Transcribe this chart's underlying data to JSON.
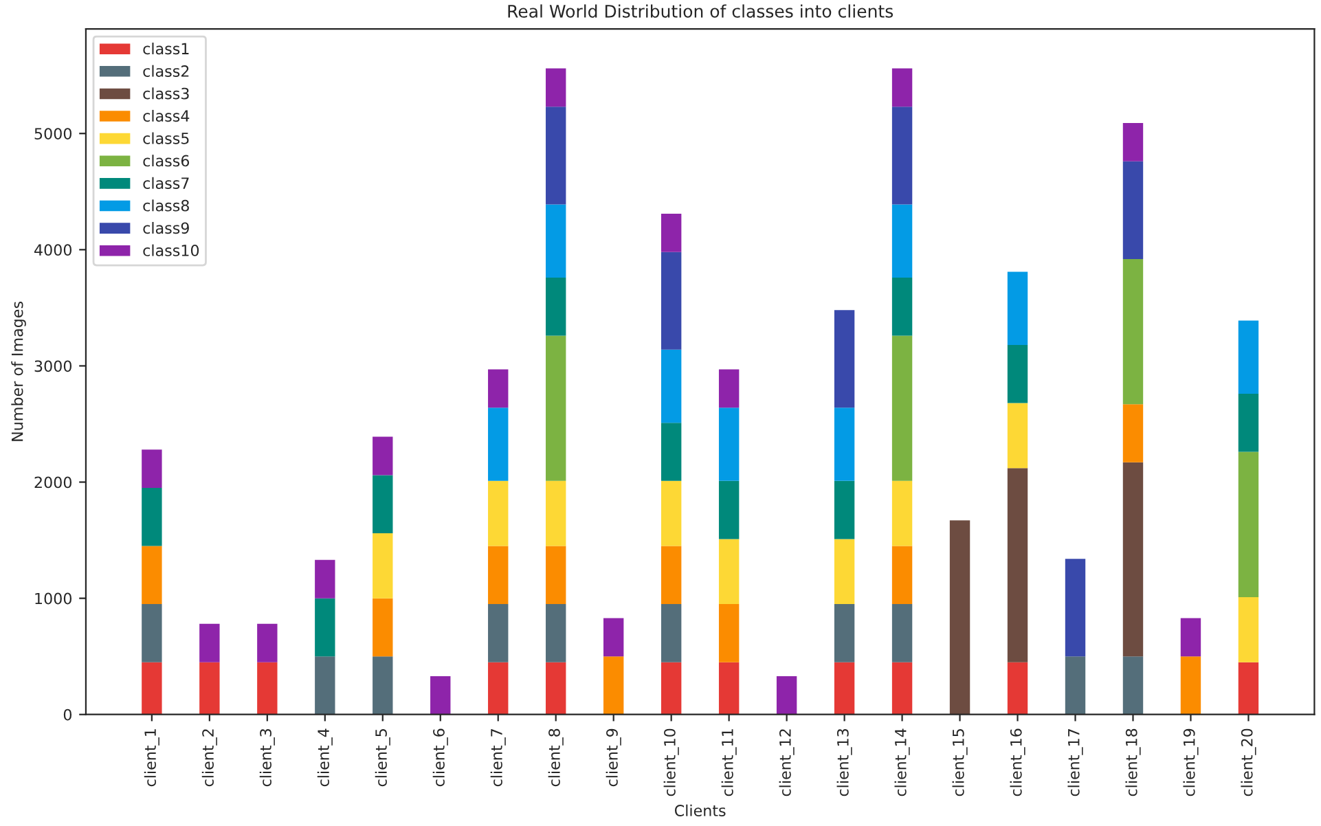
{
  "chart_data": {
    "type": "bar",
    "stacked": true,
    "title": "Real World Distribution of classes into clients",
    "xlabel": "Clients",
    "ylabel": "Number of Images",
    "categories": [
      "client_1",
      "client_2",
      "client_3",
      "client_4",
      "client_5",
      "client_6",
      "client_7",
      "client_8",
      "client_9",
      "client_10",
      "client_11",
      "client_12",
      "client_13",
      "client_14",
      "client_15",
      "client_16",
      "client_17",
      "client_18",
      "client_19",
      "client_20"
    ],
    "series": [
      {
        "name": "class1",
        "color": "#e53935",
        "values": [
          450,
          450,
          450,
          0,
          0,
          0,
          450,
          450,
          0,
          450,
          450,
          0,
          450,
          450,
          0,
          450,
          0,
          0,
          0,
          450
        ]
      },
      {
        "name": "class2",
        "color": "#546e7a",
        "values": [
          500,
          0,
          0,
          500,
          500,
          0,
          500,
          500,
          0,
          500,
          0,
          0,
          500,
          500,
          0,
          0,
          500,
          500,
          0,
          0
        ]
      },
      {
        "name": "class3",
        "color": "#6d4c41",
        "values": [
          0,
          0,
          0,
          0,
          0,
          0,
          0,
          0,
          0,
          0,
          0,
          0,
          0,
          0,
          1670,
          1670,
          0,
          1670,
          0,
          0
        ]
      },
      {
        "name": "class4",
        "color": "#fb8c00",
        "values": [
          500,
          0,
          0,
          0,
          500,
          0,
          500,
          500,
          500,
          500,
          500,
          0,
          0,
          500,
          0,
          0,
          0,
          500,
          500,
          0
        ]
      },
      {
        "name": "class5",
        "color": "#fdd835",
        "values": [
          0,
          0,
          0,
          0,
          560,
          0,
          560,
          560,
          0,
          560,
          560,
          0,
          560,
          560,
          0,
          560,
          0,
          0,
          0,
          560
        ]
      },
      {
        "name": "class6",
        "color": "#7cb342",
        "values": [
          0,
          0,
          0,
          0,
          0,
          0,
          0,
          1250,
          0,
          0,
          0,
          0,
          0,
          1250,
          0,
          0,
          0,
          1250,
          0,
          1250
        ]
      },
      {
        "name": "class7",
        "color": "#00897b",
        "values": [
          500,
          0,
          0,
          500,
          500,
          0,
          0,
          500,
          0,
          500,
          500,
          0,
          500,
          500,
          0,
          500,
          0,
          0,
          0,
          500
        ]
      },
      {
        "name": "class8",
        "color": "#039be5",
        "values": [
          0,
          0,
          0,
          0,
          0,
          0,
          630,
          630,
          0,
          630,
          630,
          0,
          630,
          630,
          0,
          630,
          0,
          0,
          0,
          630
        ]
      },
      {
        "name": "class9",
        "color": "#3949ab",
        "values": [
          0,
          0,
          0,
          0,
          0,
          0,
          0,
          840,
          0,
          840,
          0,
          0,
          840,
          840,
          0,
          0,
          840,
          840,
          0,
          0
        ]
      },
      {
        "name": "class10",
        "color": "#8e24aa",
        "values": [
          330,
          330,
          330,
          330,
          330,
          330,
          330,
          330,
          330,
          330,
          330,
          330,
          0,
          330,
          0,
          0,
          0,
          330,
          330,
          0
        ]
      }
    ],
    "ylim": [
      0,
      5900
    ],
    "yticks": [
      0,
      1000,
      2000,
      3000,
      4000,
      5000
    ],
    "legend": "top left"
  }
}
